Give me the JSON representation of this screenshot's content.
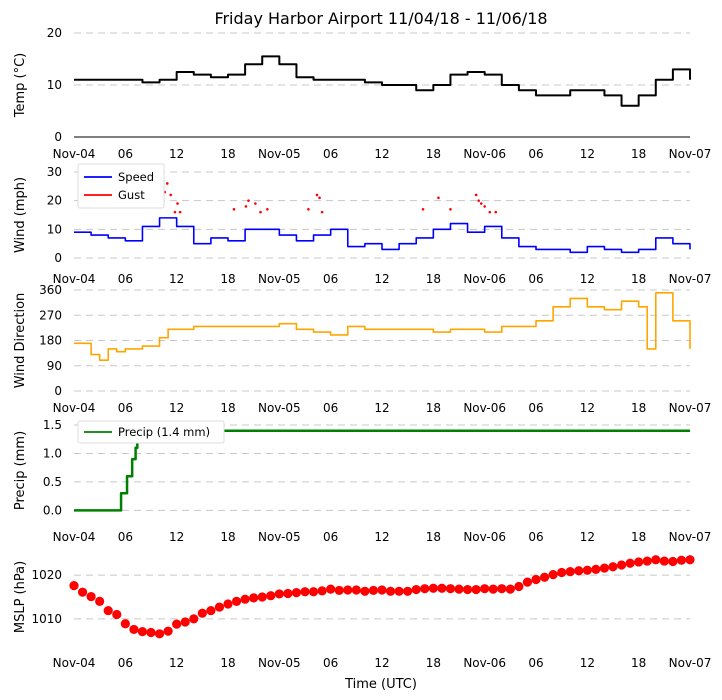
{
  "figure": {
    "title": "Friday Harbor Airport 11/04/18 - 11/06/18",
    "xlabel": "Time (UTC)",
    "x_tick_labels": [
      "Nov-04",
      "06",
      "12",
      "18",
      "Nov-05",
      "06",
      "12",
      "18",
      "Nov-06",
      "06",
      "12",
      "18",
      "Nov-07"
    ]
  },
  "colors": {
    "temp": "#000000",
    "speed": "#0000ff",
    "gust": "#ff0000",
    "direction": "#ffa500",
    "precip": "#008000",
    "mslp": "#ff0000",
    "grid": "#c8c8c8"
  },
  "chart_data": [
    {
      "id": "temp",
      "type": "line",
      "ylabel": "Temp ($^\\circ$C)",
      "ylabel_text": "Temp (°C)",
      "ylim": [
        0,
        20
      ],
      "yticks": [
        0,
        10,
        20
      ],
      "x_hours": [
        0,
        2,
        4,
        6,
        8,
        10,
        12,
        14,
        16,
        18,
        20,
        22,
        24,
        26,
        28,
        30,
        32,
        34,
        36,
        38,
        40,
        42,
        44,
        46,
        48,
        50,
        52,
        54,
        56,
        58,
        60,
        62,
        64,
        66,
        68,
        70,
        72
      ],
      "values": [
        11,
        11,
        11,
        11,
        10.5,
        11,
        12.5,
        12,
        11.5,
        12,
        14,
        15.5,
        14,
        11.5,
        11,
        11,
        11,
        10.5,
        10,
        10,
        9,
        10,
        12,
        12.5,
        12,
        10,
        9,
        8,
        8,
        9,
        9,
        8,
        6,
        8,
        11,
        13,
        11
      ]
    },
    {
      "id": "wind",
      "type": "line",
      "ylabel": "Wind (mph)",
      "ylim": [
        0,
        30
      ],
      "yticks": [
        0,
        10,
        20,
        30
      ],
      "legend": [
        "Speed",
        "Gust"
      ],
      "series": [
        {
          "name": "Speed",
          "x_hours": [
            0,
            2,
            4,
            6,
            8,
            10,
            12,
            14,
            16,
            18,
            20,
            22,
            24,
            26,
            28,
            30,
            32,
            34,
            36,
            38,
            40,
            42,
            44,
            46,
            48,
            50,
            52,
            54,
            56,
            58,
            60,
            62,
            64,
            66,
            68,
            70,
            72
          ],
          "values": [
            9,
            8,
            7,
            6,
            11,
            14,
            11,
            5,
            7,
            6,
            10,
            10,
            8,
            6,
            8,
            10,
            4,
            5,
            3,
            5,
            7,
            10,
            12,
            9,
            11,
            7,
            4,
            3,
            3,
            2,
            4,
            3,
            2,
            3,
            7,
            5,
            3
          ]
        },
        {
          "name": "Gust",
          "x_hours": [
            10.6,
            10.9,
            11.3,
            11.8,
            12.1,
            12.4,
            18.7,
            20.1,
            20.4,
            21.2,
            21.8,
            22.6,
            27.4,
            28.4,
            28.7,
            29.0,
            40.8,
            42.6,
            44.0,
            47.0,
            47.3,
            47.6,
            48.0,
            48.6,
            49.3
          ],
          "values": [
            23,
            26,
            22,
            16,
            19,
            16,
            17,
            18,
            20,
            19,
            16,
            17,
            17,
            22,
            21,
            16,
            17,
            21,
            17,
            22,
            20,
            19,
            18,
            16,
            16
          ]
        }
      ]
    },
    {
      "id": "direction",
      "type": "line",
      "ylabel": "Wind Direction",
      "ylim": [
        0,
        360
      ],
      "yticks": [
        0,
        90,
        180,
        270,
        360
      ],
      "x_hours": [
        0,
        2,
        3,
        4,
        5,
        6,
        8,
        10,
        11,
        12,
        14,
        16,
        18,
        20,
        22,
        24,
        26,
        28,
        30,
        32,
        34,
        36,
        38,
        40,
        42,
        44,
        46,
        48,
        50,
        52,
        54,
        56,
        58,
        60,
        62,
        64,
        66,
        67,
        68,
        70,
        72
      ],
      "values": [
        170,
        130,
        110,
        150,
        140,
        150,
        160,
        190,
        220,
        220,
        230,
        230,
        230,
        230,
        230,
        240,
        220,
        210,
        200,
        230,
        220,
        220,
        220,
        220,
        210,
        220,
        220,
        210,
        230,
        230,
        250,
        300,
        330,
        300,
        290,
        320,
        300,
        150,
        350,
        250,
        150
      ]
    },
    {
      "id": "precip",
      "type": "line",
      "ylabel": "Precip (mm)",
      "ylim": [
        -0.1,
        1.5
      ],
      "yticks": [
        0.0,
        0.5,
        1.0,
        1.5
      ],
      "legend": [
        "Precip (1.4 mm)"
      ],
      "x_hours": [
        0,
        5.5,
        5.5,
        6.2,
        6.2,
        6.8,
        6.8,
        7.2,
        7.2,
        7.4,
        7.4,
        7.6,
        7.6,
        72
      ],
      "values": [
        0.0,
        0.0,
        0.3,
        0.3,
        0.6,
        0.6,
        0.9,
        0.9,
        1.1,
        1.1,
        1.25,
        1.25,
        1.4,
        1.4
      ]
    },
    {
      "id": "mslp",
      "type": "scatter",
      "ylabel": "MSLP (hPa)",
      "ylim": [
        1004.5,
        1025.5
      ],
      "yticks": [
        1010,
        1020
      ],
      "x_hours": [
        0,
        1,
        2,
        3,
        4,
        5,
        6,
        7,
        8,
        9,
        10,
        11,
        12,
        13,
        14,
        15,
        16,
        17,
        18,
        19,
        20,
        21,
        22,
        23,
        24,
        25,
        26,
        27,
        28,
        29,
        30,
        31,
        32,
        33,
        34,
        35,
        36,
        37,
        38,
        39,
        40,
        41,
        42,
        43,
        44,
        45,
        46,
        47,
        48,
        49,
        50,
        51,
        52,
        53,
        54,
        55,
        56,
        57,
        58,
        59,
        60,
        61,
        62,
        63,
        64,
        65,
        66,
        67,
        68,
        69,
        70,
        71,
        72
      ],
      "values": [
        1017.6,
        1016.1,
        1015.1,
        1014.0,
        1011.9,
        1011.0,
        1008.9,
        1007.6,
        1007.1,
        1006.9,
        1006.6,
        1007.2,
        1008.8,
        1009.3,
        1010.0,
        1011.3,
        1011.9,
        1012.7,
        1013.4,
        1014.0,
        1014.5,
        1014.8,
        1015.0,
        1015.3,
        1015.7,
        1015.8,
        1016.0,
        1016.2,
        1016.2,
        1016.4,
        1016.8,
        1016.5,
        1016.6,
        1016.6,
        1016.3,
        1016.5,
        1016.6,
        1016.3,
        1016.3,
        1016.3,
        1016.7,
        1016.9,
        1017.0,
        1017.0,
        1016.9,
        1016.8,
        1016.7,
        1016.7,
        1016.9,
        1016.8,
        1016.9,
        1016.8,
        1017.4,
        1018.4,
        1019.0,
        1019.5,
        1020.1,
        1020.6,
        1020.8,
        1021.0,
        1021.1,
        1021.3,
        1021.6,
        1021.9,
        1022.3,
        1022.7,
        1023.0,
        1023.2,
        1023.5,
        1023.2,
        1023.1,
        1023.4,
        1023.5
      ]
    }
  ]
}
